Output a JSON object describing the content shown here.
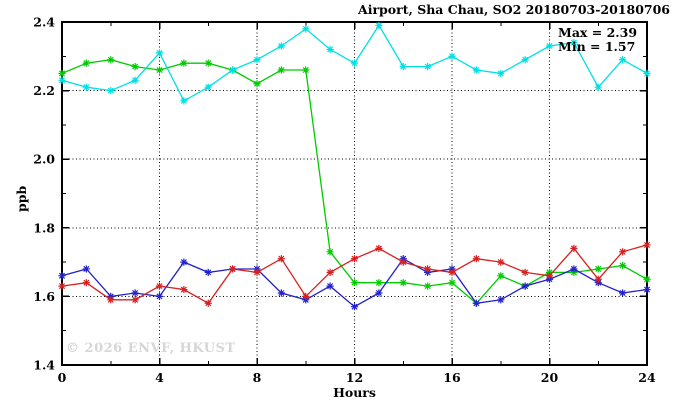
{
  "watermark": "© 2026 ENVF, HKUST",
  "chart_data": {
    "type": "line",
    "title": "Airport, Sha Chau, SO2 20180703-20180706",
    "xlabel": "Hours",
    "ylabel": "ppb",
    "xlim": [
      0,
      24
    ],
    "ylim": [
      1.4,
      2.4
    ],
    "xticks": [
      0,
      4,
      8,
      12,
      16,
      20,
      24
    ],
    "yticks": [
      1.4,
      1.6,
      1.8,
      2.0,
      2.2,
      2.4
    ],
    "grid": true,
    "legend": "none",
    "marker": "asterisk",
    "annotations": [
      "Max = 2.39",
      "Min = 1.57"
    ],
    "x": [
      0,
      1,
      2,
      3,
      4,
      5,
      6,
      7,
      8,
      9,
      10,
      11,
      12,
      13,
      14,
      15,
      16,
      17,
      18,
      19,
      20,
      21,
      22,
      23,
      24
    ],
    "series": [
      {
        "name": "green-series",
        "color": "#00cc00",
        "values": [
          2.25,
          2.28,
          2.29,
          2.27,
          2.26,
          2.28,
          2.28,
          2.26,
          2.22,
          2.26,
          2.26,
          1.73,
          1.64,
          1.64,
          1.64,
          1.63,
          1.64,
          1.58,
          1.66,
          1.63,
          1.67,
          1.67,
          1.68,
          1.69,
          1.65
        ]
      },
      {
        "name": "cyan-series",
        "color": "#00e0e4",
        "values": [
          2.23,
          2.21,
          2.2,
          2.23,
          2.31,
          2.17,
          2.21,
          2.26,
          2.29,
          2.33,
          2.38,
          2.32,
          2.28,
          2.39,
          2.27,
          2.27,
          2.3,
          2.26,
          2.25,
          2.29,
          2.33,
          2.34,
          2.21,
          2.29,
          2.25
        ]
      },
      {
        "name": "blue-series",
        "color": "#2222cc",
        "values": [
          1.66,
          1.68,
          1.6,
          1.61,
          1.6,
          1.7,
          1.67,
          1.68,
          1.68,
          1.61,
          1.59,
          1.63,
          1.57,
          1.61,
          1.71,
          1.67,
          1.68,
          1.58,
          1.59,
          1.63,
          1.65,
          1.68,
          1.64,
          1.61,
          1.62
        ]
      },
      {
        "name": "red-series",
        "color": "#d82020",
        "values": [
          1.63,
          1.64,
          1.59,
          1.59,
          1.63,
          1.62,
          1.58,
          1.68,
          1.67,
          1.71,
          1.6,
          1.67,
          1.71,
          1.74,
          1.7,
          1.68,
          1.67,
          1.71,
          1.7,
          1.67,
          1.66,
          1.74,
          1.65,
          1.73,
          1.75
        ]
      }
    ]
  }
}
